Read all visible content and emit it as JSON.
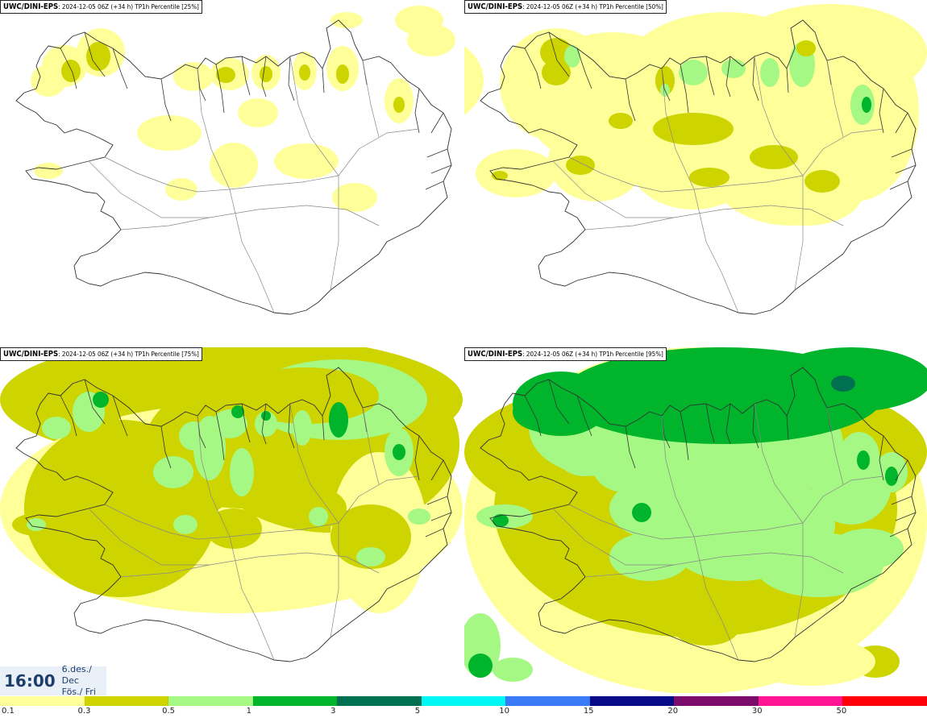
{
  "panels": [
    {
      "model": "UWC/DINI-EPS",
      "info": ": 2024-12-05 06Z (+34 h) TP1h Percentile [25%]",
      "level": 0
    },
    {
      "model": "UWC/DINI-EPS",
      "info": ": 2024-12-05 06Z (+34 h) TP1h Percentile [50%]",
      "level": 1
    },
    {
      "model": "UWC/DINI-EPS",
      "info": ": 2024-12-05 06Z (+34 h) TP1h Percentile [75%]",
      "level": 2
    },
    {
      "model": "UWC/DINI-EPS",
      "info": ": 2024-12-05 06Z (+34 h) TP1h Percentile [95%]",
      "level": 3
    }
  ],
  "valid_time": {
    "time": "16:00",
    "date": "6.des./ Dec",
    "weekday": "Fös./ Fri"
  },
  "legend": {
    "labels": [
      "0.1",
      "0.3",
      "0.5",
      "1",
      "3",
      "5",
      "10",
      "15",
      "20",
      "30",
      "50"
    ],
    "colors": [
      "#ffff9a",
      "#cdd400",
      "#a6f884",
      "#00b52b",
      "#007050",
      "#00f7f3",
      "#3a7af5",
      "#080b88",
      "#7c0c6b",
      "#ff1493",
      "#ff0008"
    ]
  },
  "colors": {
    "land_outline": "#333333",
    "border": "#888888"
  }
}
